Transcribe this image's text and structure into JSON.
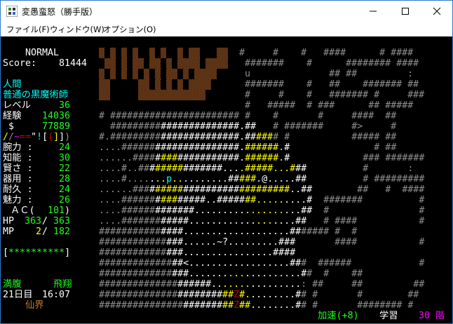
{
  "window": {
    "title": "変愚蛮怒（勝手版）",
    "controls": [
      "minimize",
      "maximize",
      "close"
    ]
  },
  "menu": [
    "ファイル(F)",
    "ウィンドウ(W)",
    "オプション(O)"
  ],
  "colors": {
    "g": "#8e8e8e",
    "w": "#ffffff",
    "y": "#ffff00",
    "c": "#00ffff",
    "r": "#d40000",
    "m": "#ff00ff",
    "b": "#b8652a",
    "green": "#1eff1e",
    "orange": "#c8782a"
  },
  "sidebar": {
    "mode": "NORMAL",
    "score_label": "Score:",
    "score": "81444",
    "race": "人間",
    "title": "普通の黒魔術師",
    "level_label": "レベル",
    "level": "36",
    "exp_label": "経験",
    "exp": "14036",
    "gold_label": "$",
    "gold": "77889",
    "equipment": [
      {
        "char": "/",
        "color": "y"
      },
      {
        "char": "/",
        "color": "g"
      },
      {
        "char": "~",
        "color": "m"
      },
      {
        "char": "=",
        "color": "r"
      },
      {
        "char": "=",
        "color": "r"
      },
      {
        "char": "\"",
        "color": "w"
      },
      {
        "char": "!",
        "color": "c"
      },
      {
        "char": "[",
        "color": "w"
      },
      {
        "char": "(",
        "color": "r"
      },
      {
        "char": "]",
        "color": "y"
      },
      {
        "char": "]",
        "color": "w"
      },
      {
        "char": ")",
        "color": "g"
      }
    ],
    "stats": [
      {
        "label": "腕力 :",
        "value": "24"
      },
      {
        "label": "知能 :",
        "value": "30"
      },
      {
        "label": "賢さ :",
        "value": "22"
      },
      {
        "label": "器用 :",
        "value": "28"
      },
      {
        "label": "耐久 :",
        "value": "24"
      },
      {
        "label": "魅力 :",
        "value": "26"
      }
    ],
    "ac_label": "ＡＣ(",
    "ac": "101",
    "ac_close": ")",
    "hp_label": "HP",
    "hp_cur": "363",
    "hp_max": "363",
    "mp_label": "MP",
    "mp_cur": "2",
    "mp_max": "182",
    "slash": "/",
    "health_bar": {
      "open": "[",
      "stars": "**********",
      "close": "]",
      "fill": 1.0
    },
    "hunger": "満腹",
    "flying": "飛翔",
    "day": "21日目",
    "time": "16:07",
    "location": "仙界"
  },
  "statusline": {
    "speed": "加速(+8)",
    "study": "学習",
    "depth": "30 階"
  },
  "map": {
    "rows": [
      [
        [
          "▓ ▓ ▓ ▓  ▓ ▓  ▓ ▓▓   ▓▓",
          "b"
        ],
        [
          "  #     #    #   ####      # ####",
          "g"
        ]
      ],
      [
        [
          " ▓▓ ▓ ▓▓ ▓▓ ▓ ▓▓▓▓ ▓▓▓▓ ",
          "b"
        ],
        [
          "  #######    #      ######## ####",
          "g"
        ]
      ],
      [
        [
          "▓ ▓ ▓ ▓ ▓ ▓ ▓▓ ▓ ▓▓▓▓   ",
          "b"
        ],
        [
          "  u              ## ##         :",
          "g"
        ]
      ],
      [
        [
          "▓▓     ▓▓ ▓ ▓ ▓ ▓▓▓▓    ",
          "b"
        ],
        [
          "  #######    #   ##    ####### ##",
          "g"
        ]
      ],
      [
        [
          "▓▓     ▓▓▓▓▓▓▓▓▓▓▓▓     ",
          "b"
        ],
        [
          "  #     #    #   ####### #     ###",
          "g"
        ]
      ],
      [
        [
          "                          #   #####  # ###      ## #####",
          "g"
        ]
      ],
      [
        [
          "# ####################### #    #       #     ####  ##",
          "g"
        ]
      ],
      [
        [
          "  #########",
          "g"
        ],
        [
          "##############.##",
          "w"
        ],
        [
          "   # #######     #>     #",
          "g"
        ]
      ],
      [
        [
          "#.#########",
          "g"
        ],
        [
          "##############.##",
          "w"
        ],
        [
          "###",
          "y"
        ],
        [
          "# #           ##### ##",
          "g"
        ]
      ],
      [
        [
          "....######",
          "g"
        ],
        [
          "###############.",
          "w"
        ],
        [
          "######.",
          "y"
        ],
        [
          "#",
          "w"
        ],
        [
          "               # ##",
          "g"
        ]
      ],
      [
        [
          "......####",
          "g"
        ],
        [
          "#",
          "w"
        ],
        [
          "###",
          "y"
        ],
        [
          "###########.",
          "w"
        ],
        [
          "######.",
          "y"
        ],
        [
          "#",
          "w"
        ],
        [
          "             ### #######",
          "g"
        ]
      ],
      [
        [
          "....#..##",
          "g"
        ],
        [
          "#",
          "w"
        ],
        [
          "#####",
          "y"
        ],
        [
          "#######...",
          "w"
        ],
        [
          ".#####...#",
          "y"
        ],
        [
          "##",
          "w"
        ],
        [
          "          #       :",
          "g"
        ]
      ],
      [
        [
          "....#....",
          "g"
        ],
        [
          ".",
          "w"
        ],
        [
          "..",
          "y"
        ],
        [
          "p",
          "c"
        ],
        [
          "..",
          "y"
        ],
        [
          "........##",
          "w"
        ],
        [
          "###",
          "y"
        ],
        [
          ".@.....##",
          "w"
        ],
        [
          "          # #########",
          "g"
        ]
      ],
      [
        [
          "......###",
          "g"
        ],
        [
          "#",
          "w"
        ],
        [
          "#####",
          "y"
        ],
        [
          "##########",
          "w"
        ],
        [
          "#########",
          "y"
        ],
        [
          "..##",
          "w"
        ],
        [
          "        ##   #  ####",
          "g"
        ]
      ],
      [
        [
          "....######",
          "g"
        ],
        [
          "#",
          "w"
        ],
        [
          "###",
          "y"
        ],
        [
          "#####..#####",
          "w"
        ],
        [
          "##.....",
          "y"
        ],
        [
          "....#",
          "w"
        ],
        [
          "  #######          #",
          "g"
        ]
      ],
      [
        [
          "....######",
          "g"
        ],
        [
          "#######.........",
          "w"
        ],
        [
          ".......",
          "y"
        ],
        [
          "...##",
          "w"
        ],
        [
          "  #                #",
          "g"
        ]
      ],
      [
        [
          "....#######",
          "g"
        ],
        [
          "#####............",
          "w"
        ],
        [
          "...",
          "y"
        ],
        [
          "....##",
          "w"
        ],
        [
          "   # ####           #",
          "g"
        ]
      ],
      [
        [
          "###########",
          "g"
        ],
        [
          "####...................##",
          "w"
        ],
        [
          "##### #  #",
          "g"
        ]
      ],
      [
        [
          "############",
          "g"
        ],
        [
          "###......~?.........###",
          "w"
        ],
        [
          "       ####           #",
          "g"
        ]
      ],
      [
        [
          "############",
          "g"
        ],
        [
          "###................####",
          "w"
        ]
      ],
      [
        [
          "#############",
          "g"
        ],
        [
          "##<..................##",
          "w"
        ],
        [
          "#  ######            #",
          "g"
        ]
      ],
      [
        [
          "#############",
          "g"
        ],
        [
          "###.......",
          "w"
        ],
        [
          "...",
          "y"
        ],
        [
          "..........#",
          "w"
        ],
        [
          "#  #    ##",
          "g"
        ]
      ],
      [
        [
          "##############",
          "g"
        ],
        [
          "######..",
          "w"
        ],
        [
          ".....",
          "y"
        ],
        [
          ".........",
          "w"
        ],
        [
          ": ##     ##         ##",
          "g"
        ]
      ],
      [
        [
          "##############",
          "g"
        ],
        [
          "########",
          "w"
        ],
        [
          "##",
          "y"
        ],
        [
          "Z",
          "r"
        ],
        [
          "#.",
          "y"
        ],
        [
          "........#",
          "w"
        ],
        [
          "# #       #        ##",
          "g"
        ]
      ],
      [
        [
          "###############",
          "g"
        ],
        [
          "#######",
          "w"
        ],
        [
          "##",
          "y"
        ],
        [
          "Z",
          "r"
        ],
        [
          "##",
          "y"
        ],
        [
          "........#",
          "w"
        ],
        [
          "# #       ######## #",
          "g"
        ]
      ]
    ]
  }
}
